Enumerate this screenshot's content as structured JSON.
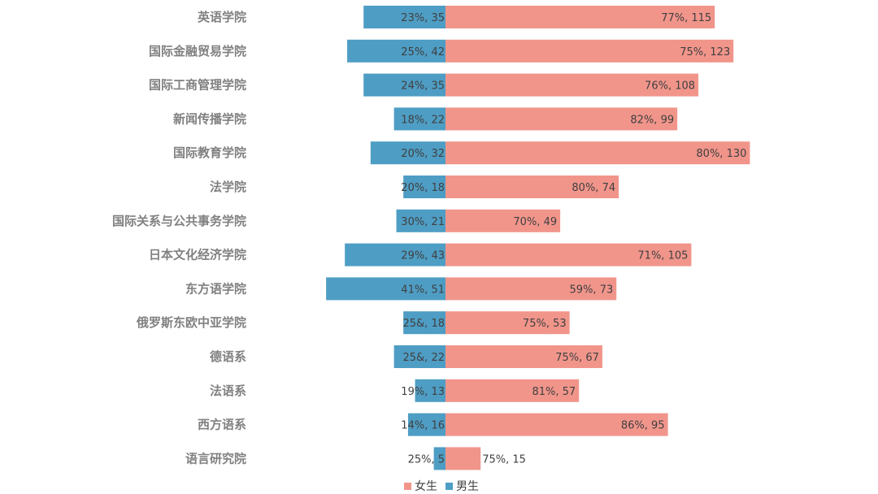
{
  "chart_data": {
    "type": "bar",
    "orientation": "horizontal-diverging",
    "categories": [
      "英语学院",
      "国际金融贸易学院",
      "国际工商管理学院",
      "新闻传播学院",
      "国际教育学院",
      "法学院",
      "国际关系与公共事务学院",
      "日本文化经济学院",
      "东方语学院",
      "俄罗斯东欧中亚学院",
      "德语系",
      "法语系",
      "西方语系",
      "语言研究院"
    ],
    "series": [
      {
        "name": "女生",
        "color": "#F1958B",
        "side": "right",
        "values": [
          115,
          123,
          108,
          99,
          130,
          74,
          49,
          105,
          73,
          53,
          67,
          57,
          95,
          15
        ],
        "labels": [
          "77%, 115",
          "75%, 123",
          "76%, 108",
          "82%, 99",
          "80%, 130",
          "80%, 74",
          "70%, 49",
          "71%, 105",
          "59%, 73",
          "75%, 53",
          "75%, 67",
          "81%, 57",
          "86%, 95",
          "75%, 15"
        ]
      },
      {
        "name": "男生",
        "color": "#4E9DC4",
        "side": "left",
        "values": [
          35,
          42,
          35,
          22,
          32,
          18,
          21,
          43,
          51,
          18,
          22,
          13,
          16,
          5
        ],
        "labels": [
          "23%, 35",
          "25%, 42",
          "24%, 35",
          "18%, 22",
          "20%, 32",
          "20%, 18",
          "30%, 21",
          "29%, 43",
          "41%, 51",
          "25&, 18",
          "25&, 22",
          "19%, 13",
          "14%, 16",
          "25%, 5"
        ]
      }
    ],
    "legend_position": "bottom",
    "grid": false
  }
}
